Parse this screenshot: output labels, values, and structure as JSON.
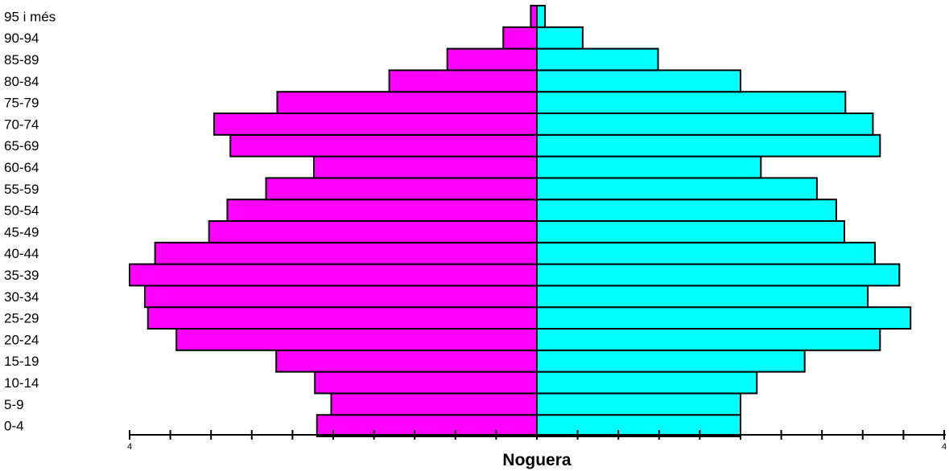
{
  "chart_data": {
    "type": "bar",
    "orientation": "horizontal-pyramid",
    "title": "Noguera",
    "categories": [
      "0-4",
      "5-9",
      "10-14",
      "15-19",
      "20-24",
      "25-29",
      "30-34",
      "35-39",
      "40-44",
      "45-49",
      "50-54",
      "55-59",
      "60-64",
      "65-69",
      "70-74",
      "75-79",
      "80-84",
      "85-89",
      "90-94",
      "95 i més"
    ],
    "series": [
      {
        "color": "#ff00ff",
        "side": "left",
        "values": [
          2.16,
          2.02,
          2.18,
          2.56,
          3.54,
          3.82,
          3.85,
          4.0,
          3.75,
          3.22,
          3.04,
          2.66,
          2.19,
          3.01,
          3.17,
          2.55,
          1.45,
          0.88,
          0.33,
          0.06
        ]
      },
      {
        "color": "#00ffff",
        "side": "right",
        "values": [
          2.0,
          2.0,
          2.16,
          2.63,
          3.37,
          3.67,
          3.25,
          3.56,
          3.32,
          3.02,
          2.94,
          2.75,
          2.2,
          3.37,
          3.3,
          3.03,
          2.0,
          1.19,
          0.45,
          0.08
        ]
      }
    ],
    "xlim": [
      -4,
      4
    ],
    "tick_step": 0.4,
    "x_tick_labels": {
      "left": "4",
      "right": "4"
    },
    "grid": false,
    "legend": "none"
  }
}
